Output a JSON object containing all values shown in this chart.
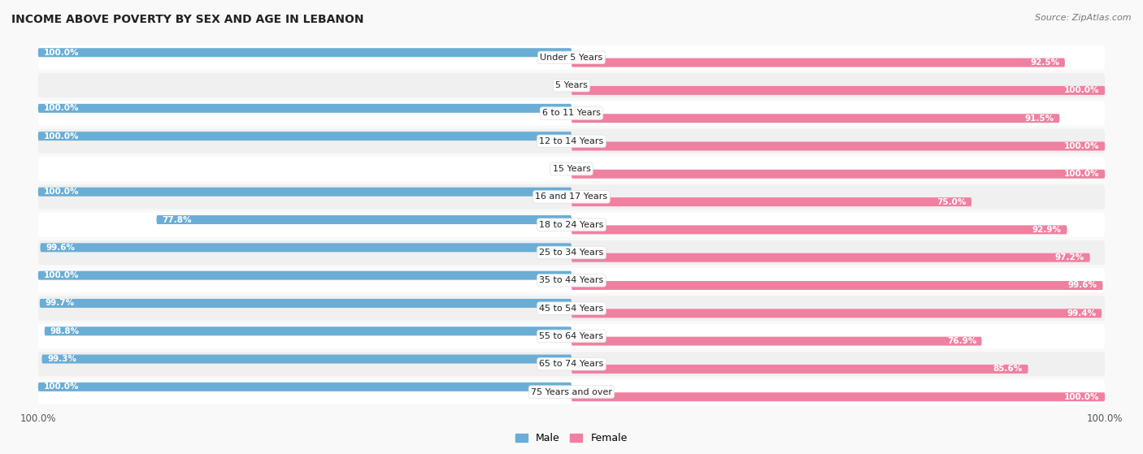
{
  "title": "INCOME ABOVE POVERTY BY SEX AND AGE IN LEBANON",
  "source": "Source: ZipAtlas.com",
  "categories": [
    "Under 5 Years",
    "5 Years",
    "6 to 11 Years",
    "12 to 14 Years",
    "15 Years",
    "16 and 17 Years",
    "18 to 24 Years",
    "25 to 34 Years",
    "35 to 44 Years",
    "45 to 54 Years",
    "55 to 64 Years",
    "65 to 74 Years",
    "75 Years and over"
  ],
  "male": [
    100.0,
    0.0,
    100.0,
    100.0,
    0.0,
    100.0,
    77.8,
    99.6,
    100.0,
    99.7,
    98.8,
    99.3,
    100.0
  ],
  "female": [
    92.5,
    100.0,
    91.5,
    100.0,
    100.0,
    75.0,
    92.9,
    97.2,
    99.6,
    99.4,
    76.9,
    85.6,
    100.0
  ],
  "male_color": "#6aadd5",
  "female_color": "#f080a0",
  "male_color_light": "#b8d8ee",
  "female_color_light": "#f8c0d0",
  "row_color_odd": "#f0f0f0",
  "row_color_even": "#ffffff",
  "bg_color": "#f9f9f9",
  "title_fontsize": 10,
  "label_fontsize": 8,
  "value_fontsize": 7.5,
  "legend_male": "Male",
  "legend_female": "Female"
}
